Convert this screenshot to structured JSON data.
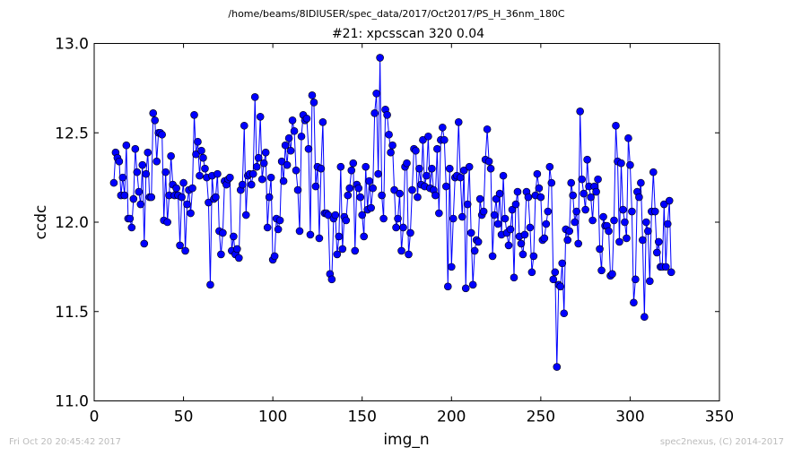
{
  "header": {
    "path": "/home/beams/8IDIUSER/spec_data/2017/Oct2017/PS_H_36nm_180C",
    "scan_title": "#21: xpcsscan 320 0.04"
  },
  "footer": {
    "timestamp": "Fri Oct 20 20:45:42 2017",
    "credit": "spec2nexus, (C) 2014-2017"
  },
  "chart_data": {
    "type": "line",
    "title": "#21: xpcsscan 320 0.04",
    "xlabel": "img_n",
    "ylabel": "ccdc",
    "xlim": [
      0,
      350
    ],
    "ylim": [
      11.0,
      13.0
    ],
    "xticks": [
      0,
      50,
      100,
      150,
      200,
      250,
      300,
      350
    ],
    "yticks": [
      11.0,
      11.5,
      12.0,
      12.5,
      13.0
    ],
    "xtick_labels": [
      "0",
      "50",
      "100",
      "150",
      "200",
      "250",
      "300",
      "350"
    ],
    "ytick_labels": [
      "11.0",
      "11.5",
      "12.0",
      "12.5",
      "13.0"
    ],
    "grid": false,
    "series_color": "#0000ff",
    "series": [
      {
        "x_start": 11,
        "x_step": 1,
        "values": [
          12.22,
          12.39,
          12.36,
          12.34,
          12.15,
          12.25,
          12.15,
          12.43,
          12.02,
          12.02,
          11.97,
          12.13,
          12.41,
          12.28,
          12.17,
          12.1,
          12.32,
          11.88,
          12.27,
          12.39,
          12.14,
          12.14,
          12.61,
          12.57,
          12.34,
          12.5,
          12.5,
          12.49,
          12.01,
          12.28,
          12.0,
          12.15,
          12.37,
          12.21,
          12.15,
          12.19,
          12.15,
          11.87,
          12.14,
          12.22,
          11.84,
          12.1,
          12.18,
          12.05,
          12.19,
          12.6,
          12.38,
          12.45,
          12.26,
          12.4,
          12.36,
          12.3,
          12.25,
          12.11,
          11.65,
          12.26,
          12.13,
          12.14,
          12.27,
          11.95,
          11.82,
          11.94,
          12.23,
          12.21,
          12.24,
          12.25,
          11.84,
          11.92,
          11.82,
          11.85,
          11.8,
          12.18,
          12.21,
          12.54,
          12.04,
          12.26,
          12.27,
          12.21,
          12.27,
          12.7,
          12.31,
          12.36,
          12.59,
          12.24,
          12.33,
          12.39,
          11.97,
          12.14,
          12.25,
          11.79,
          11.81,
          12.02,
          11.96,
          12.01,
          12.34,
          12.23,
          12.43,
          12.32,
          12.47,
          12.4,
          12.57,
          12.51,
          12.29,
          12.18,
          11.95,
          12.48,
          12.6,
          12.57,
          12.58,
          12.41,
          11.93,
          12.71,
          12.67,
          12.2,
          12.31,
          11.91,
          12.3,
          12.56,
          12.05,
          12.05,
          12.04,
          11.71,
          11.68,
          12.02,
          12.04,
          11.82,
          11.92,
          12.31,
          11.85,
          12.03,
          12.01,
          12.15,
          12.19,
          12.29,
          12.33,
          11.84,
          12.21,
          12.19,
          12.14,
          12.04,
          11.92,
          12.31,
          12.07,
          12.23,
          12.08,
          12.19,
          12.61,
          12.72,
          12.27,
          12.92,
          12.15,
          12.02,
          12.63,
          12.6,
          12.49,
          12.39,
          12.43,
          12.18,
          11.97,
          12.02,
          12.16,
          11.84,
          11.97,
          12.31,
          12.33,
          11.82,
          11.94,
          12.18,
          12.41,
          12.4,
          12.14,
          12.3,
          12.21,
          12.46,
          12.2,
          12.26,
          12.48,
          12.19,
          12.3,
          12.18,
          12.15,
          12.41,
          12.05,
          12.46,
          12.53,
          12.46,
          12.2,
          11.64,
          12.3,
          11.75,
          12.02,
          12.25,
          12.26,
          12.56,
          12.25,
          12.03,
          12.29,
          11.63,
          12.1,
          12.31,
          11.94,
          11.65,
          11.84,
          11.9,
          11.89,
          12.13,
          12.04,
          12.06,
          12.35,
          12.52,
          12.34,
          12.3,
          11.81,
          12.04,
          12.13,
          11.99,
          12.16,
          11.93,
          12.26,
          12.02,
          11.94,
          11.87,
          11.96,
          12.07,
          11.69,
          12.1,
          12.17,
          11.92,
          11.88,
          11.82,
          11.93,
          12.17,
          12.14,
          11.97,
          11.72,
          11.81,
          12.15,
          12.27,
          12.19,
          12.14,
          11.9,
          11.91,
          11.99,
          12.06,
          12.31,
          12.22,
          11.68,
          11.72,
          11.19,
          11.65,
          11.64,
          11.77,
          11.49,
          11.96,
          11.9,
          11.95,
          12.22,
          12.15,
          12.0,
          12.06,
          11.88,
          12.62,
          12.24,
          12.16,
          12.07,
          12.35,
          12.2,
          12.14,
          12.01,
          12.2,
          12.17,
          12.24,
          11.85,
          11.73,
          12.03,
          11.98,
          11.98,
          11.95,
          11.7,
          11.71,
          12.01,
          12.54,
          12.34,
          11.89,
          12.33,
          12.07,
          12.0,
          11.91,
          12.47,
          12.32,
          12.06,
          11.55,
          11.68,
          12.17,
          12.14,
          12.22,
          11.9,
          11.47,
          12.0,
          11.95,
          11.67,
          12.06,
          12.28,
          12.06,
          11.83,
          11.89,
          11.75,
          11.75,
          12.1,
          11.75,
          11.99,
          12.12,
          11.72
        ]
      }
    ]
  }
}
